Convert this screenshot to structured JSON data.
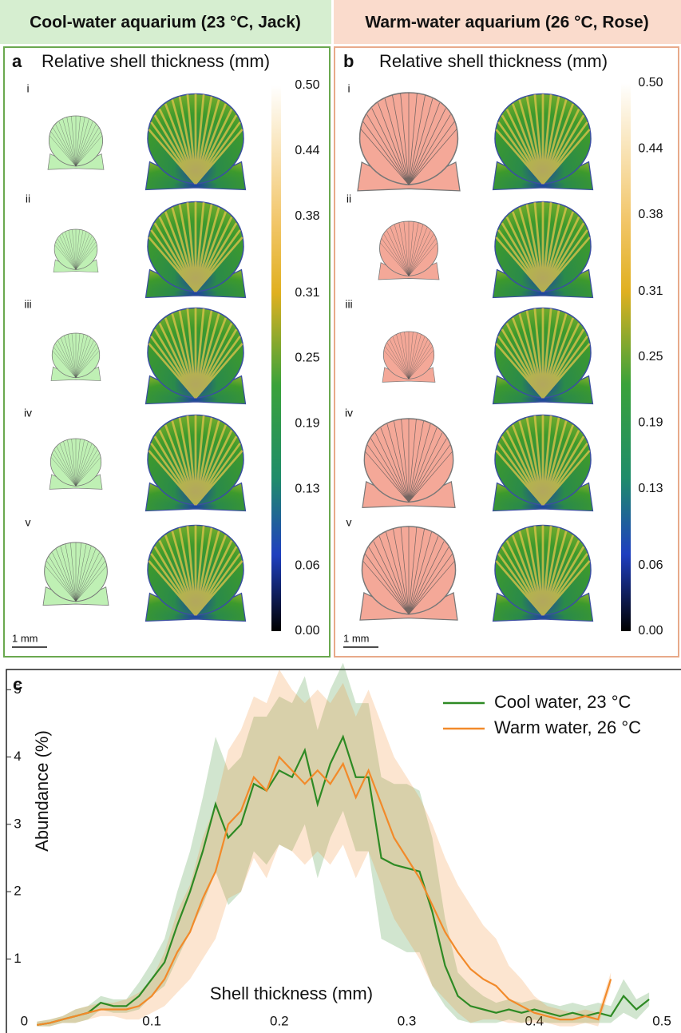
{
  "panels": [
    {
      "header": "Cool-water aquarium (23 °C, Jack)",
      "letter": "a",
      "title": "Relative shell thickness (mm)",
      "rows": [
        "i",
        "ii",
        "iii",
        "iv",
        "v"
      ],
      "scale_bar": "1 mm",
      "colorbar": {
        "lim": [
          0,
          0.5
        ],
        "ticks": [
          {
            "value": 0.5,
            "label": "0.50"
          },
          0.44,
          0.38,
          0.31,
          0.25,
          0.19,
          0.13,
          0.06,
          {
            "value": 0,
            "label": "0.00"
          }
        ]
      }
    },
    {
      "header": "Warm-water aquarium (26 °C, Rose)",
      "letter": "b",
      "title": "Relative shell thickness (mm)",
      "rows": [
        "i",
        "ii",
        "iii",
        "iv",
        "v"
      ],
      "scale_bar": "1 mm",
      "colorbar": {
        "lim": [
          0,
          0.5
        ],
        "ticks": [
          {
            "value": 0.5,
            "label": "0.50"
          },
          0.44,
          0.38,
          0.31,
          0.25,
          0.19,
          0.13,
          0.06,
          {
            "value": 0,
            "label": "0.00"
          }
        ]
      }
    }
  ],
  "chart_data": {
    "type": "line",
    "letter": "c",
    "x_label": "Shell thickness (mm)",
    "y_label": "Abundance (%)",
    "xlim": [
      -0.014,
      0.515
    ],
    "ylim": [
      -0.1,
      5.3
    ],
    "xticks": [
      0,
      0.1,
      0.2,
      0.3,
      0.4,
      0.5
    ],
    "yticks": [
      1,
      2,
      3,
      4,
      5
    ],
    "legend": "upper right",
    "grid": false,
    "x": [
      0.01,
      0.02,
      0.03,
      0.04,
      0.05,
      0.06,
      0.07,
      0.08,
      0.09,
      0.1,
      0.11,
      0.12,
      0.13,
      0.14,
      0.15,
      0.16,
      0.17,
      0.18,
      0.19,
      0.2,
      0.21,
      0.22,
      0.23,
      0.24,
      0.25,
      0.26,
      0.27,
      0.28,
      0.29,
      0.3,
      0.31,
      0.32,
      0.33,
      0.34,
      0.35,
      0.36,
      0.37,
      0.38,
      0.39,
      0.4,
      0.41,
      0.42,
      0.43,
      0.44,
      0.45,
      0.46,
      0.47,
      0.48,
      0.49
    ],
    "series": [
      {
        "name": "Cool water, 23 °C",
        "color": "#2e8a24",
        "values": [
          0.02,
          0.05,
          0.1,
          0.15,
          0.2,
          0.35,
          0.3,
          0.3,
          0.45,
          0.7,
          0.95,
          1.5,
          2.0,
          2.6,
          3.3,
          2.8,
          3.0,
          3.6,
          3.5,
          3.8,
          3.7,
          4.1,
          3.3,
          3.9,
          4.3,
          3.7,
          3.7,
          2.5,
          2.4,
          2.35,
          2.3,
          1.7,
          0.9,
          0.45,
          0.3,
          0.25,
          0.2,
          0.25,
          0.2,
          0.25,
          0.2,
          0.15,
          0.2,
          0.15,
          0.2,
          0.15,
          0.45,
          0.25,
          0.4
        ],
        "upper": [
          0.07,
          0.1,
          0.15,
          0.25,
          0.3,
          0.45,
          0.4,
          0.4,
          0.65,
          0.95,
          1.3,
          2.0,
          2.6,
          3.4,
          4.3,
          3.8,
          4.0,
          4.6,
          4.6,
          4.9,
          4.8,
          5.2,
          4.4,
          5.0,
          5.4,
          4.8,
          4.8,
          3.7,
          3.6,
          3.6,
          3.5,
          2.8,
          1.6,
          0.8,
          0.6,
          0.45,
          0.35,
          0.4,
          0.35,
          0.4,
          0.35,
          0.3,
          0.35,
          0.3,
          0.35,
          0.3,
          0.7,
          0.4,
          0.5
        ],
        "lower": [
          0,
          0,
          0.05,
          0.05,
          0.1,
          0.25,
          0.2,
          0.2,
          0.25,
          0.45,
          0.6,
          1.0,
          1.4,
          1.8,
          2.3,
          1.8,
          2.0,
          2.6,
          2.4,
          2.7,
          2.6,
          3.0,
          2.2,
          2.8,
          3.2,
          2.6,
          2.6,
          1.3,
          1.2,
          1.1,
          1.1,
          0.6,
          0.3,
          0.1,
          0.05,
          0.05,
          0.05,
          0.1,
          0.05,
          0.1,
          0.05,
          0.05,
          0.05,
          0.05,
          0.05,
          0.05,
          0.2,
          0.1,
          0.3
        ]
      },
      {
        "name": "Warm water, 26 °C",
        "color": "#f28a2a",
        "values": [
          0.02,
          0.05,
          0.1,
          0.15,
          0.2,
          0.25,
          0.25,
          0.25,
          0.3,
          0.45,
          0.7,
          1.1,
          1.4,
          1.9,
          2.3,
          3.0,
          3.2,
          3.7,
          3.5,
          4.0,
          3.8,
          3.6,
          3.8,
          3.6,
          3.9,
          3.4,
          3.8,
          3.3,
          2.8,
          2.5,
          2.2,
          1.8,
          1.4,
          1.1,
          0.85,
          0.7,
          0.6,
          0.4,
          0.3,
          0.2,
          0.15,
          0.1,
          0.1,
          0.15,
          0.1,
          0.7,
          null,
          null,
          null
        ],
        "upper": [
          0.07,
          0.1,
          0.15,
          0.25,
          0.3,
          0.35,
          0.35,
          0.4,
          0.5,
          0.7,
          1.1,
          1.7,
          2.1,
          2.8,
          3.3,
          4.1,
          4.4,
          4.9,
          4.8,
          5.3,
          5.0,
          4.8,
          5.0,
          4.8,
          5.1,
          4.6,
          5.0,
          4.5,
          4.0,
          3.7,
          3.4,
          3.0,
          2.5,
          2.1,
          1.8,
          1.5,
          1.3,
          0.9,
          0.7,
          0.45,
          0.3,
          0.25,
          0.2,
          0.25,
          0.2,
          0.8,
          null,
          null,
          null
        ],
        "lower": [
          0,
          0,
          0.05,
          0.05,
          0.1,
          0.15,
          0.15,
          0.1,
          0.1,
          0.2,
          0.3,
          0.5,
          0.7,
          1.0,
          1.3,
          1.9,
          2.0,
          2.5,
          2.2,
          2.7,
          2.6,
          2.4,
          2.6,
          2.4,
          2.7,
          2.2,
          2.6,
          2.1,
          1.6,
          1.3,
          1.0,
          0.6,
          0.4,
          0.2,
          0.05,
          0.1,
          0.1,
          0.05,
          0.05,
          0.05,
          0.05,
          0,
          0,
          0.05,
          0,
          0.6,
          null,
          null,
          null
        ]
      }
    ]
  }
}
